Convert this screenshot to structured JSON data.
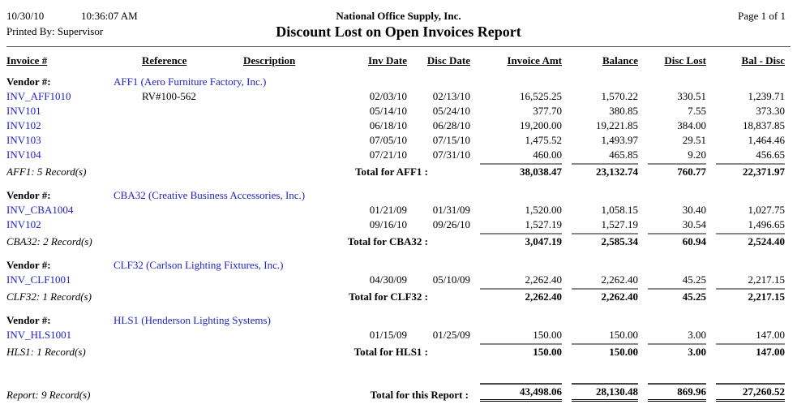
{
  "header": {
    "print_date": "10/30/10",
    "print_time": "10:36:07 AM",
    "printed_by": "Printed By: Supervisor",
    "company": "National Office Supply, Inc.",
    "title": "Discount Lost on Open Invoices Report",
    "page_info": "Page 1 of 1"
  },
  "columns": {
    "invoice": "Invoice #",
    "reference": "Reference",
    "description": "Description",
    "inv_date": "Inv Date",
    "disc_date": "Disc Date",
    "invoice_amt": "Invoice Amt",
    "balance": "Balance",
    "disc_lost": "Disc Lost",
    "bal_disc": "Bal - Disc"
  },
  "vendor_label": "Vendor #:",
  "sections": [
    {
      "vendor": "AFF1 (Aero Furniture Factory, Inc.)",
      "rows": [
        {
          "invoice": "INV_AFF1010",
          "reference": "RV#100-562",
          "description": "",
          "inv_date": "02/03/10",
          "disc_date": "02/13/10",
          "invoice_amt": "16,525.25",
          "balance": "1,570.22",
          "disc_lost": "330.51",
          "bal_disc": "1,239.71"
        },
        {
          "invoice": "INV101",
          "reference": "",
          "description": "",
          "inv_date": "05/14/10",
          "disc_date": "05/24/10",
          "invoice_amt": "377.70",
          "balance": "380.85",
          "disc_lost": "7.55",
          "bal_disc": "373.30"
        },
        {
          "invoice": "INV102",
          "reference": "",
          "description": "",
          "inv_date": "06/18/10",
          "disc_date": "06/28/10",
          "invoice_amt": "19,200.00",
          "balance": "19,221.85",
          "disc_lost": "384.00",
          "bal_disc": "18,837.85"
        },
        {
          "invoice": "INV103",
          "reference": "",
          "description": "",
          "inv_date": "07/05/10",
          "disc_date": "07/15/10",
          "invoice_amt": "1,475.52",
          "balance": "1,493.97",
          "disc_lost": "29.51",
          "bal_disc": "1,464.46"
        },
        {
          "invoice": "INV104",
          "reference": "",
          "description": "",
          "inv_date": "07/21/10",
          "disc_date": "07/31/10",
          "invoice_amt": "460.00",
          "balance": "465.85",
          "disc_lost": "9.20",
          "bal_disc": "456.65"
        }
      ],
      "record_count": "AFF1: 5 Record(s)",
      "total_label": "Total for AFF1 :",
      "totals": {
        "invoice_amt": "38,038.47",
        "balance": "23,132.74",
        "disc_lost": "760.77",
        "bal_disc": "22,371.97"
      }
    },
    {
      "vendor": "CBA32 (Creative Business Accessories, Inc.)",
      "rows": [
        {
          "invoice": "INV_CBA1004",
          "reference": "",
          "description": "",
          "inv_date": "01/21/09",
          "disc_date": "01/31/09",
          "invoice_amt": "1,520.00",
          "balance": "1,058.15",
          "disc_lost": "30.40",
          "bal_disc": "1,027.75"
        },
        {
          "invoice": "INV102",
          "reference": "",
          "description": "",
          "inv_date": "09/16/10",
          "disc_date": "09/26/10",
          "invoice_amt": "1,527.19",
          "balance": "1,527.19",
          "disc_lost": "30.54",
          "bal_disc": "1,496.65"
        }
      ],
      "record_count": "CBA32: 2 Record(s)",
      "total_label": "Total for CBA32 :",
      "totals": {
        "invoice_amt": "3,047.19",
        "balance": "2,585.34",
        "disc_lost": "60.94",
        "bal_disc": "2,524.40"
      }
    },
    {
      "vendor": "CLF32 (Carlson Lighting Fixtures, Inc.)",
      "rows": [
        {
          "invoice": "INV_CLF1001",
          "reference": "",
          "description": "",
          "inv_date": "04/30/09",
          "disc_date": "05/10/09",
          "invoice_amt": "2,262.40",
          "balance": "2,262.40",
          "disc_lost": "45.25",
          "bal_disc": "2,217.15"
        }
      ],
      "record_count": "CLF32: 1 Record(s)",
      "total_label": "Total for CLF32 :",
      "totals": {
        "invoice_amt": "2,262.40",
        "balance": "2,262.40",
        "disc_lost": "45.25",
        "bal_disc": "2,217.15"
      }
    },
    {
      "vendor": "HLS1 (Henderson Lighting Systems)",
      "rows": [
        {
          "invoice": "INV_HLS1001",
          "reference": "",
          "description": "",
          "inv_date": "01/15/09",
          "disc_date": "01/25/09",
          "invoice_amt": "150.00",
          "balance": "150.00",
          "disc_lost": "3.00",
          "bal_disc": "147.00"
        }
      ],
      "record_count": "HLS1: 1 Record(s)",
      "total_label": "Total for HLS1 :",
      "totals": {
        "invoice_amt": "150.00",
        "balance": "150.00",
        "disc_lost": "3.00",
        "bal_disc": "147.00"
      }
    }
  ],
  "report_total": {
    "record_count": "Report: 9 Record(s)",
    "label": "Total for this Report :",
    "totals": {
      "invoice_amt": "43,498.06",
      "balance": "28,130.48",
      "disc_lost": "869.96",
      "bal_disc": "27,260.52"
    }
  },
  "colors": {
    "link_blue": "#2121C8",
    "total_line_gray": "#8a8a8a",
    "rule_dark": "#555555"
  }
}
